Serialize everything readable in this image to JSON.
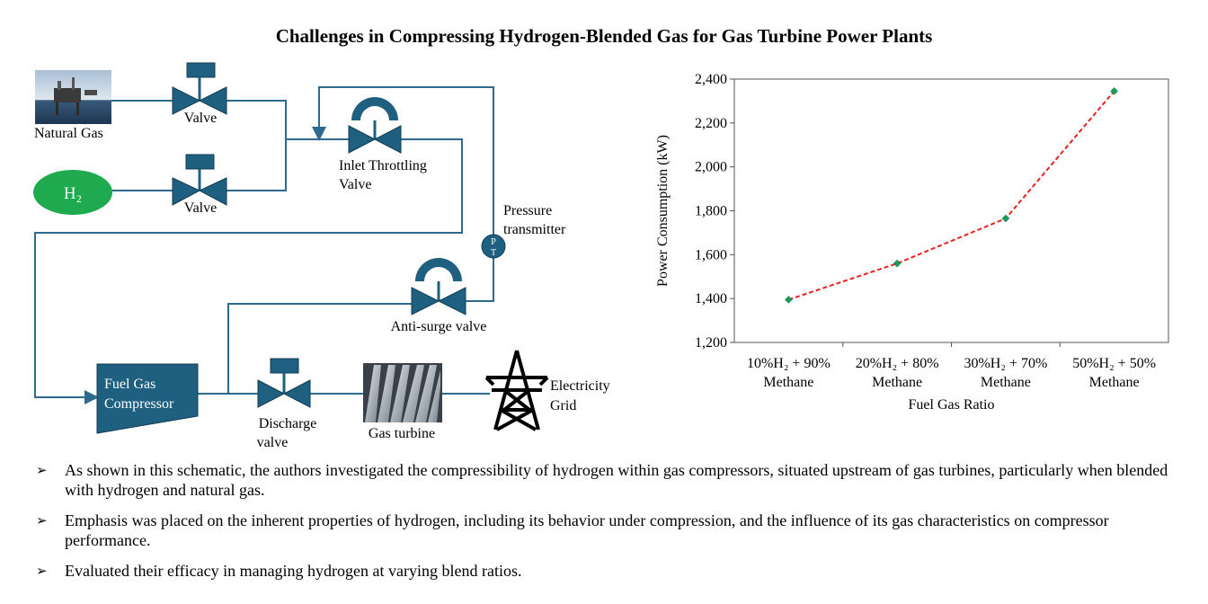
{
  "title": "Challenges in Compressing Hydrogen-Blended Gas for Gas Turbine Power Plants",
  "schematic": {
    "natural_gas_label": "Natural Gas",
    "h2_label": "H₂",
    "valve_top_label": "Valve",
    "valve_bottom_label": "Valve",
    "inlet_valve_label_line1": "Inlet Throttling",
    "inlet_valve_label_line2": "Valve",
    "pressure_transmitter_line1": "Pressure",
    "pressure_transmitter_line2": "transmitter",
    "pt_p": "P",
    "pt_t": "T",
    "anti_surge_label": "Anti-surge valve",
    "compressor_line1": "Fuel Gas",
    "compressor_line2": "Compressor",
    "discharge_line1": "Discharge",
    "discharge_line2": "valve",
    "gas_turbine_label": "Gas turbine",
    "grid_line1": "Electricity",
    "grid_line2": "Grid",
    "colors": {
      "pipe": "#2e6a8e",
      "valve": "#1f5f80",
      "h2_oval": "#1faa4f",
      "compressor": "#1f5f80"
    }
  },
  "chart_data": {
    "type": "line",
    "categories": [
      [
        "10%H₂ + 90%",
        "Methane"
      ],
      [
        "20%H₂ + 80%",
        "Methane"
      ],
      [
        "30%H₂ + 70%",
        "Methane"
      ],
      [
        "50%H₂ + 50%",
        "Methane"
      ]
    ],
    "values": [
      1395,
      1560,
      1765,
      2345
    ],
    "xlabel": "Fuel Gas Ratio",
    "ylabel": "Power Consumption (kW)",
    "ylim": [
      1200,
      2400
    ],
    "yticks": [
      "1,200",
      "1,400",
      "1,600",
      "1,800",
      "2,000",
      "2,200",
      "2,400"
    ],
    "line_color": "#e8221c",
    "marker_color": "#1a9c5a",
    "grid": false
  },
  "bullets": [
    "As shown in this schematic, the authors investigated the compressibility of hydrogen within gas compressors, situated upstream of gas turbines, particularly when blended with hydrogen and natural gas.",
    "Emphasis was placed on the inherent properties of hydrogen, including its behavior under compression, and the influence of its gas characteristics on compressor performance.",
    "Evaluated their efficacy in managing hydrogen at varying blend ratios."
  ]
}
